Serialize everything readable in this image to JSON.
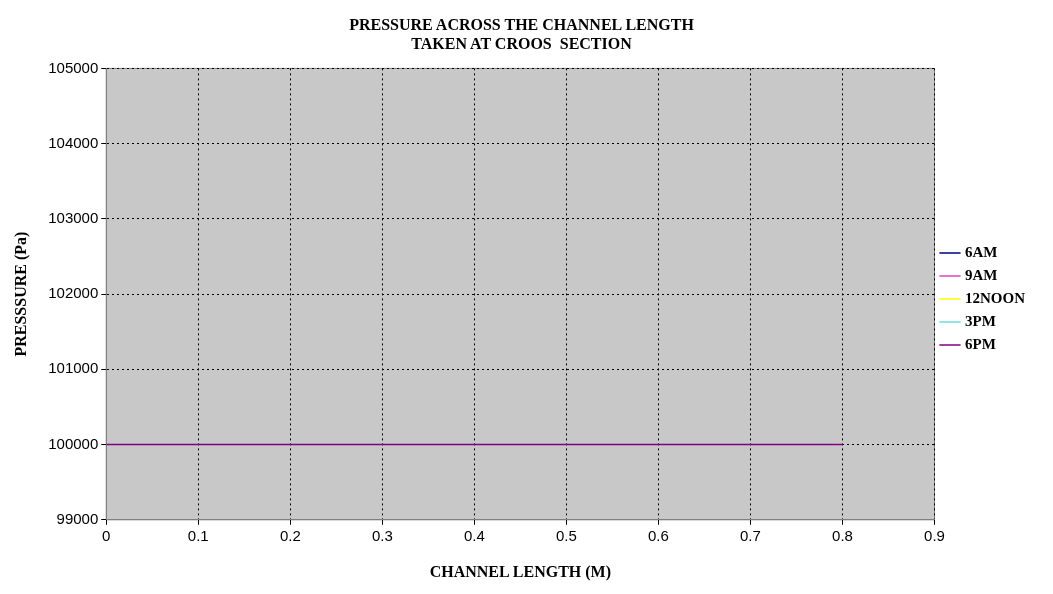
{
  "chart_data": {
    "type": "line",
    "title": "PRESSURE ACROSS THE CHANNEL LENGTH\nTAKEN AT CROOS  SECTION",
    "xlabel": "CHANNEL LENGTH (M)",
    "ylabel": "PRESSSURE (Pa)",
    "x": [
      0,
      0.8
    ],
    "series": [
      {
        "name": "6AM",
        "color": "#000080",
        "values": [
          null,
          null
        ]
      },
      {
        "name": "9AM",
        "color": "#e040c0",
        "values": [
          null,
          null
        ]
      },
      {
        "name": "12NOON",
        "color": "#ffff00",
        "values": [
          null,
          null
        ]
      },
      {
        "name": "3PM",
        "color": "#66e0e0",
        "values": [
          null,
          null
        ]
      },
      {
        "name": "6PM",
        "color": "#800080",
        "values": [
          100000,
          100000
        ]
      }
    ],
    "xlim": [
      0,
      0.9
    ],
    "xticks": [
      0,
      0.1,
      0.2,
      0.3,
      0.4,
      0.5,
      0.6,
      0.7,
      0.8,
      0.9
    ],
    "ylim": [
      99000,
      105000
    ],
    "yticks": [
      99000,
      100000,
      101000,
      102000,
      103000,
      104000,
      105000
    ],
    "grid": true,
    "legend": "right",
    "marker": "none",
    "line_style": "solid"
  }
}
